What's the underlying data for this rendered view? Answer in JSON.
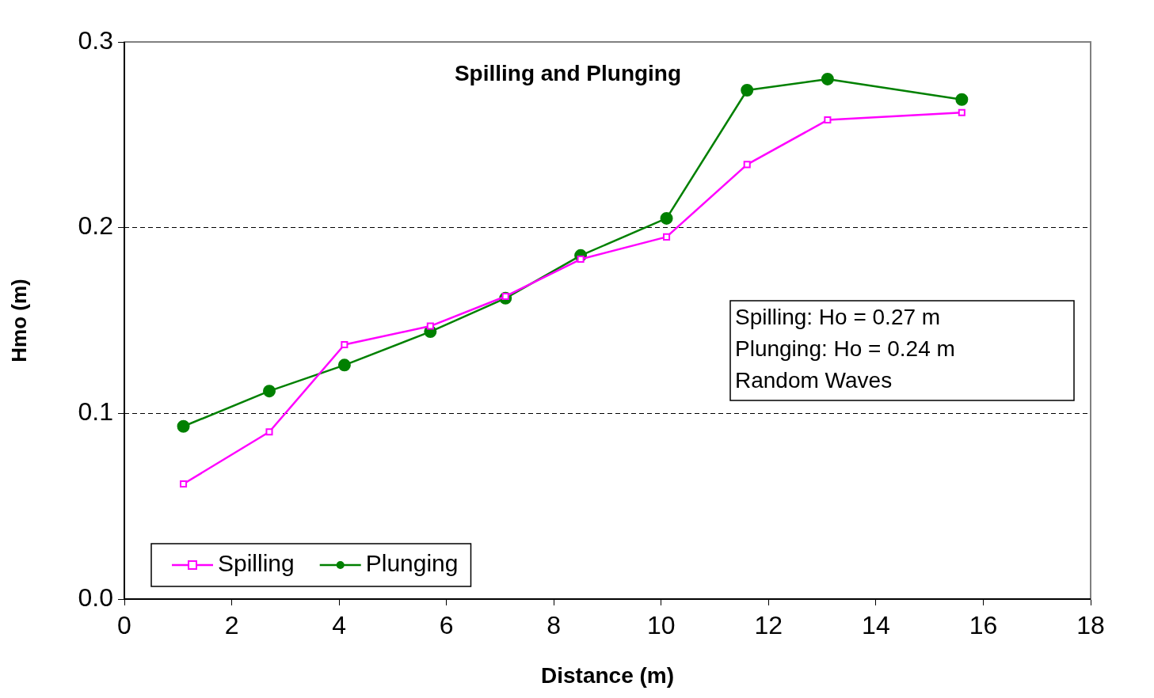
{
  "chart_data": {
    "type": "line",
    "title": "Spilling and Plunging",
    "xlabel": "Distance (m)",
    "ylabel": "Hmo (m)",
    "x": [
      1.1,
      2.7,
      4.1,
      5.7,
      7.1,
      8.5,
      10.1,
      11.6,
      13.1,
      15.6
    ],
    "series": [
      {
        "name": "Spilling",
        "color": "#ff00ff",
        "marker": "square",
        "values": [
          0.062,
          0.09,
          0.137,
          0.147,
          0.163,
          0.183,
          0.195,
          0.234,
          0.258,
          0.262
        ]
      },
      {
        "name": "Plunging",
        "color": "#008000",
        "marker": "circle",
        "values": [
          0.093,
          0.112,
          0.126,
          0.144,
          0.162,
          0.185,
          0.205,
          0.274,
          0.28,
          0.269
        ]
      }
    ],
    "xlim": [
      0,
      18
    ],
    "xticks": [
      0,
      2,
      4,
      6,
      8,
      10,
      12,
      14,
      16,
      18
    ],
    "ylim": [
      0,
      0.3
    ],
    "yticks": [
      {
        "value": 0,
        "label": "0.0"
      },
      {
        "value": 0.1,
        "label": "0.1"
      },
      {
        "value": 0.2,
        "label": "0.2"
      },
      {
        "value": 0.3,
        "label": "0.3"
      }
    ],
    "grid": "y",
    "legend": "bottom left",
    "line_style": "solid",
    "annotations": [
      "Spilling: Ho = 0.27 m",
      "Plunging: Ho = 0.24 m",
      "Random Waves"
    ]
  }
}
